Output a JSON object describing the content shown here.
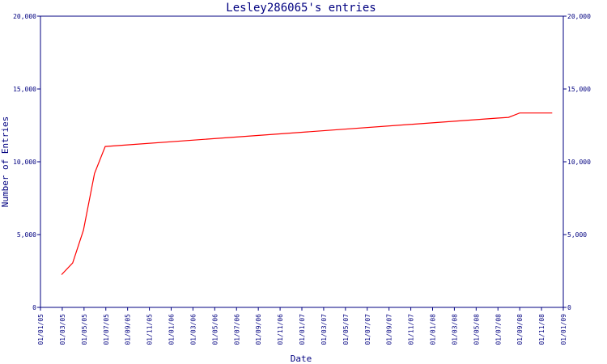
{
  "chart_data": {
    "type": "line",
    "title": "Lesley286065's entries",
    "xlabel": "Date",
    "ylabel": "Number of Entries",
    "x_tick_labels": [
      "01/01/05",
      "01/03/05",
      "01/05/05",
      "01/07/05",
      "01/09/05",
      "01/11/05",
      "01/01/06",
      "01/03/06",
      "01/05/06",
      "01/07/06",
      "01/09/06",
      "01/11/06",
      "01/01/07",
      "01/03/07",
      "01/05/07",
      "01/07/07",
      "01/09/07",
      "01/11/07",
      "01/01/08",
      "01/03/08",
      "01/05/08",
      "01/07/08",
      "01/09/08",
      "01/11/08",
      "01/01/09"
    ],
    "y_tick_labels": [
      "0",
      "5,000",
      "10,000",
      "15,000",
      "20,000"
    ],
    "ylim": [
      0,
      20000
    ],
    "xlim": [
      "2005-01-01",
      "2009-01-01"
    ],
    "grid": false,
    "colors": {
      "axis": "#000080",
      "series": "#ff0000",
      "background": "#ffffff"
    },
    "series": [
      {
        "values": [
          {
            "x": "2005-03-01",
            "y": 2250
          },
          {
            "x": "2005-04-01",
            "y": 3050
          },
          {
            "x": "2005-05-01",
            "y": 5300
          },
          {
            "x": "2005-06-01",
            "y": 9200
          },
          {
            "x": "2005-07-01",
            "y": 11050
          },
          {
            "x": "2008-07-01",
            "y": 13000
          },
          {
            "x": "2008-08-01",
            "y": 13050
          },
          {
            "x": "2008-09-01",
            "y": 13350
          },
          {
            "x": "2008-10-01",
            "y": 13350
          },
          {
            "x": "2008-11-01",
            "y": 13350
          },
          {
            "x": "2008-12-01",
            "y": 13350
          }
        ]
      }
    ]
  }
}
